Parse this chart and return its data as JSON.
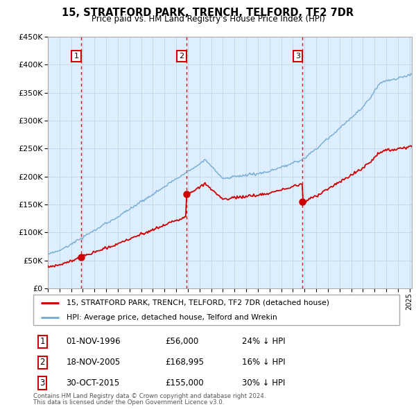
{
  "title": "15, STRATFORD PARK, TRENCH, TELFORD, TF2 7DR",
  "subtitle": "Price paid vs. HM Land Registry's House Price Index (HPI)",
  "ylim": [
    0,
    450000
  ],
  "yticks": [
    0,
    50000,
    100000,
    150000,
    200000,
    250000,
    300000,
    350000,
    400000,
    450000
  ],
  "sales": [
    {
      "date_num": 1996.84,
      "price": 56000,
      "label": "1"
    },
    {
      "date_num": 2005.88,
      "price": 168995,
      "label": "2"
    },
    {
      "date_num": 2015.83,
      "price": 155000,
      "label": "3"
    }
  ],
  "sale_info": [
    {
      "label": "1",
      "date": "01-NOV-1996",
      "price": "£56,000",
      "hpi": "24% ↓ HPI"
    },
    {
      "label": "2",
      "date": "18-NOV-2005",
      "price": "£168,995",
      "hpi": "16% ↓ HPI"
    },
    {
      "label": "3",
      "date": "30-OCT-2015",
      "price": "£155,000",
      "hpi": "30% ↓ HPI"
    }
  ],
  "legend1": "15, STRATFORD PARK, TRENCH, TELFORD, TF2 7DR (detached house)",
  "legend2": "HPI: Average price, detached house, Telford and Wrekin",
  "footer1": "Contains HM Land Registry data © Crown copyright and database right 2024.",
  "footer2": "This data is licensed under the Open Government Licence v3.0.",
  "red_color": "#cc0000",
  "blue_color": "#7bafd4",
  "grid_color": "#c8d8e8",
  "bg_color": "#ddeeff",
  "vline_color": "#cc0000",
  "xmin": 1994.0,
  "xmax": 2025.2
}
